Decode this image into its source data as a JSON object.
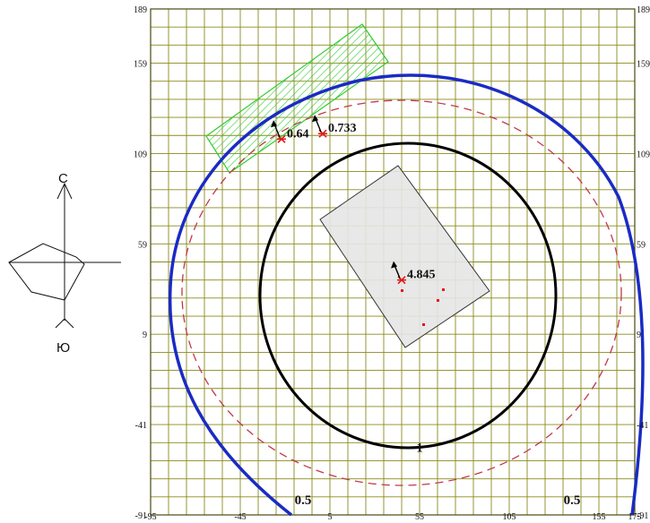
{
  "map": {
    "compass": {
      "north_label": "С",
      "south_label": "Ю"
    },
    "axes": {
      "x_ticks": [
        "-95",
        "-45",
        "5",
        "55",
        "105",
        "155",
        "175"
      ],
      "y_ticks_left": [
        "189",
        "159",
        "109",
        "59",
        "9",
        "-41",
        "-91"
      ],
      "y_ticks_right": [
        "189",
        "159",
        "109",
        "59",
        "9",
        "-41",
        "-91"
      ],
      "x_range": [
        -95,
        175
      ],
      "y_range": [
        -91,
        189
      ],
      "grid": true
    },
    "measurement_points": [
      {
        "label": "0.64",
        "x": -22,
        "y": 117
      },
      {
        "label": "0.733",
        "x": 1,
        "y": 120
      },
      {
        "label": "4.845",
        "x": 45,
        "y": 39
      }
    ],
    "contour_labels": [
      {
        "label": "1",
        "x": 55,
        "y": -56
      },
      {
        "label": "0.5",
        "x": -10,
        "y": -85
      },
      {
        "label": "0.5",
        "x": 140,
        "y": -85
      }
    ],
    "colors": {
      "grid": "#8a8a1e",
      "contour_outer": "#1a2bc4",
      "contour_inner": "#000000",
      "dashed_circle": "#c0394b",
      "zone_fill": "#e6e6e6",
      "hatch_zone": "#33cc33",
      "point_marker": "#e01a1a"
    }
  }
}
